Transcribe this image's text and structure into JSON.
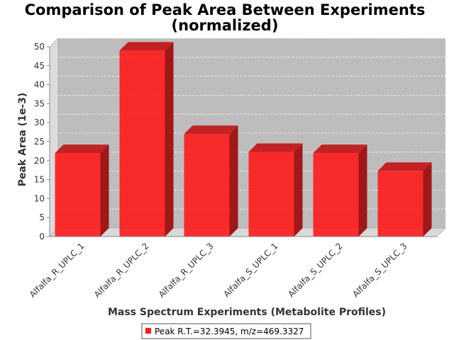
{
  "chart_data": {
    "type": "bar",
    "title": "Comparison of Peak Area Between Experiments",
    "subtitle": "(normalized)",
    "xlabel": "Mass Spectrum Experiments (Metabolite Profiles)",
    "ylabel": "Peak Area (1e-3)",
    "categories": [
      "Alfalfa_R_UPLC_1",
      "Alfalfa_R_UPLC_2",
      "Alfalfa_R_UPLC_3",
      "Alfalfa_S_UPLC_1",
      "Alfalfa_S_UPLC_2",
      "Alfalfa_S_UPLC_3"
    ],
    "series": [
      {
        "name": "Peak R.T.=32.3945, m/z=469.3327",
        "values": [
          22,
          49,
          27,
          22.3,
          22,
          17.3
        ]
      }
    ],
    "ylim": [
      0,
      50
    ],
    "yticks": [
      "0",
      "5",
      "10",
      "15",
      "20",
      "25",
      "30",
      "35",
      "40",
      "45",
      "50"
    ],
    "grid": true,
    "legend_position": "bottom",
    "colors": {
      "bar_front": "#ff1a1a",
      "bar_top": "#c42222",
      "bar_side": "#a01818",
      "plot_back": "#bdbdbd",
      "plot_left_wall": "#dcdcdc",
      "plot_floor": "#d9d9d9",
      "grid": "#ffffff"
    }
  }
}
